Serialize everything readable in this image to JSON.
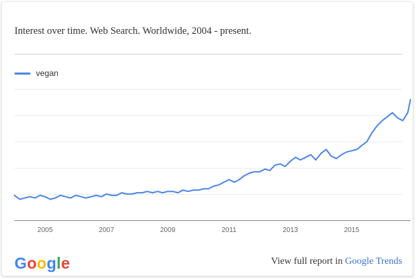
{
  "header": {
    "title": "Interest over time. Web Search. Worldwide, 2004 - present."
  },
  "footer": {
    "text": "View full report in",
    "link": "Google Trends"
  },
  "logo": {
    "text": "Google",
    "letter_colors": [
      "#4285F4",
      "#EA4335",
      "#FBBC05",
      "#4285F4",
      "#34A853",
      "#EA4335"
    ]
  },
  "chart_data": {
    "type": "line",
    "title": "Interest over time. Web Search. Worldwide, 2004 - present.",
    "xlabel": "",
    "ylabel": "",
    "x_range": [
      2004.0,
      2016.92
    ],
    "ylim": [
      0,
      100
    ],
    "x_ticks": [
      {
        "label": "2005",
        "value": 2005.0
      },
      {
        "label": "2007",
        "value": 2007.0
      },
      {
        "label": "2009",
        "value": 2009.0
      },
      {
        "label": "2011",
        "value": 2011.0
      },
      {
        "label": "2013",
        "value": 2013.0
      },
      {
        "label": "2015",
        "value": 2015.0
      }
    ],
    "grid": true,
    "legend": "top-left",
    "series": [
      {
        "name": "vegan",
        "color": "#4a86e8",
        "x": [
          2004.0,
          2004.17,
          2004.33,
          2004.5,
          2004.67,
          2004.83,
          2005.0,
          2005.17,
          2005.33,
          2005.5,
          2005.67,
          2005.83,
          2006.0,
          2006.17,
          2006.33,
          2006.5,
          2006.67,
          2006.83,
          2007.0,
          2007.17,
          2007.33,
          2007.5,
          2007.67,
          2007.83,
          2008.0,
          2008.17,
          2008.33,
          2008.5,
          2008.67,
          2008.83,
          2009.0,
          2009.17,
          2009.33,
          2009.5,
          2009.67,
          2009.83,
          2010.0,
          2010.17,
          2010.33,
          2010.5,
          2010.67,
          2010.83,
          2011.0,
          2011.17,
          2011.33,
          2011.5,
          2011.67,
          2011.83,
          2012.0,
          2012.17,
          2012.33,
          2012.5,
          2012.67,
          2012.83,
          2013.0,
          2013.17,
          2013.33,
          2013.5,
          2013.67,
          2013.83,
          2014.0,
          2014.17,
          2014.33,
          2014.5,
          2014.67,
          2014.83,
          2015.0,
          2015.17,
          2015.33,
          2015.5,
          2015.67,
          2015.83,
          2016.0,
          2016.17,
          2016.33,
          2016.5,
          2016.67,
          2016.83,
          2016.92
        ],
        "values": [
          19,
          16,
          17,
          18,
          17,
          19,
          18,
          16,
          17,
          19,
          18,
          17,
          19,
          18,
          17,
          18,
          19,
          18,
          20,
          19,
          19,
          21,
          20,
          20,
          21,
          21,
          22,
          21,
          22,
          21,
          22,
          22,
          21,
          23,
          22,
          23,
          23,
          24,
          24,
          26,
          27,
          29,
          31,
          29,
          31,
          34,
          36,
          37,
          37,
          39,
          38,
          42,
          43,
          41,
          45,
          48,
          46,
          48,
          50,
          46,
          51,
          54,
          49,
          47,
          50,
          52,
          53,
          54,
          57,
          60,
          67,
          72,
          76,
          79,
          82,
          78,
          76,
          82,
          92
        ]
      }
    ]
  }
}
